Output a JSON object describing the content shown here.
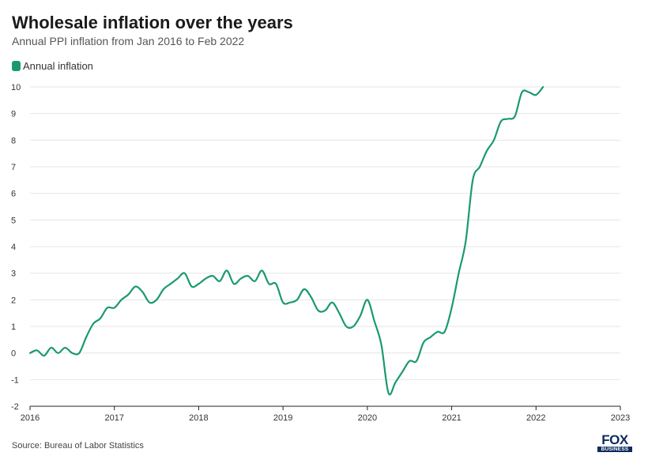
{
  "header": {
    "title": "Wholesale inflation over the years",
    "subtitle": "Annual PPI inflation from Jan 2016 to Feb 2022"
  },
  "footer": {
    "source": "Source: Bureau of Labor Statistics",
    "logo_top": "FOX",
    "logo_bottom": "BUSINESS"
  },
  "chart_data": {
    "type": "line",
    "title": "Wholesale inflation over the years",
    "subtitle": "Annual PPI inflation from Jan 2016 to Feb 2022",
    "xlabel": "",
    "ylabel": "",
    "xlim": [
      2016,
      2023
    ],
    "ylim": [
      -2,
      10
    ],
    "x_ticks": [
      "2016",
      "2017",
      "2018",
      "2019",
      "2020",
      "2021",
      "2022",
      "2023"
    ],
    "y_ticks": [
      "-2",
      "-1",
      "0",
      "1",
      "2",
      "3",
      "4",
      "5",
      "6",
      "7",
      "8",
      "9",
      "10"
    ],
    "grid": true,
    "legend": "top-left",
    "series": [
      {
        "name": "Annual inflation",
        "color": "#1a9a6c",
        "x": [
          "Jan 2016",
          "Feb 2016",
          "Mar 2016",
          "Apr 2016",
          "May 2016",
          "Jun 2016",
          "Jul 2016",
          "Aug 2016",
          "Sep 2016",
          "Oct 2016",
          "Nov 2016",
          "Dec 2016",
          "Jan 2017",
          "Feb 2017",
          "Mar 2017",
          "Apr 2017",
          "May 2017",
          "Jun 2017",
          "Jul 2017",
          "Aug 2017",
          "Sep 2017",
          "Oct 2017",
          "Nov 2017",
          "Dec 2017",
          "Jan 2018",
          "Feb 2018",
          "Mar 2018",
          "Apr 2018",
          "May 2018",
          "Jun 2018",
          "Jul 2018",
          "Aug 2018",
          "Sep 2018",
          "Oct 2018",
          "Nov 2018",
          "Dec 2018",
          "Jan 2019",
          "Feb 2019",
          "Mar 2019",
          "Apr 2019",
          "May 2019",
          "Jun 2019",
          "Jul 2019",
          "Aug 2019",
          "Sep 2019",
          "Oct 2019",
          "Nov 2019",
          "Dec 2019",
          "Jan 2020",
          "Feb 2020",
          "Mar 2020",
          "Apr 2020",
          "May 2020",
          "Jun 2020",
          "Jul 2020",
          "Aug 2020",
          "Sep 2020",
          "Oct 2020",
          "Nov 2020",
          "Dec 2020",
          "Jan 2021",
          "Feb 2021",
          "Mar 2021",
          "Apr 2021",
          "May 2021",
          "Jun 2021",
          "Jul 2021",
          "Aug 2021",
          "Sep 2021",
          "Oct 2021",
          "Nov 2021",
          "Dec 2021",
          "Jan 2022",
          "Feb 2022"
        ],
        "values": [
          0.0,
          0.1,
          -0.1,
          0.2,
          0.0,
          0.2,
          0.0,
          0.0,
          0.6,
          1.1,
          1.3,
          1.7,
          1.7,
          2.0,
          2.2,
          2.5,
          2.3,
          1.9,
          2.0,
          2.4,
          2.6,
          2.8,
          3.0,
          2.5,
          2.6,
          2.8,
          2.9,
          2.7,
          3.1,
          2.6,
          2.8,
          2.9,
          2.7,
          3.1,
          2.6,
          2.6,
          1.9,
          1.9,
          2.0,
          2.4,
          2.1,
          1.6,
          1.6,
          1.9,
          1.5,
          1.0,
          1.0,
          1.4,
          2.0,
          1.2,
          0.3,
          -1.5,
          -1.1,
          -0.7,
          -0.3,
          -0.3,
          0.4,
          0.6,
          0.8,
          0.8,
          1.7,
          3.0,
          4.2,
          6.5,
          7.0,
          7.6,
          8.0,
          8.7,
          8.8,
          8.9,
          9.8,
          9.8,
          9.7,
          10.0
        ]
      }
    ]
  }
}
